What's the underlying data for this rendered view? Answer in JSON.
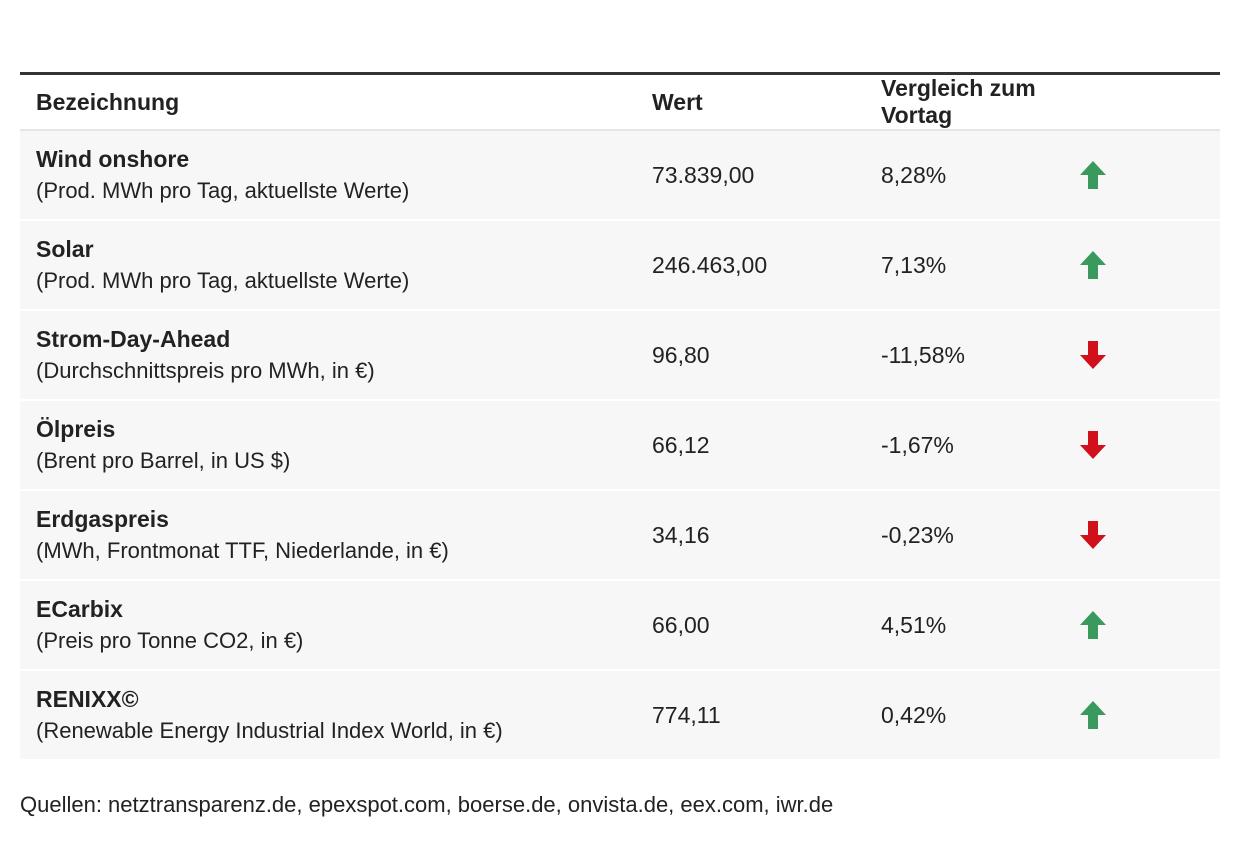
{
  "table": {
    "headers": {
      "name": "Bezeichnung",
      "value": "Wert",
      "change": "Vergleich zum Vortag"
    },
    "rows": [
      {
        "title": "Wind onshore",
        "subtitle": "(Prod. MWh pro Tag, aktuellste Werte)",
        "value": "73.839,00",
        "change": "8,28%",
        "trend": "up"
      },
      {
        "title": "Solar",
        "subtitle": "(Prod. MWh pro Tag, aktuellste Werte)",
        "value": "246.463,00",
        "change": "7,13%",
        "trend": "up"
      },
      {
        "title": "Strom-Day-Ahead",
        "subtitle": "(Durchschnittspreis pro MWh, in €)",
        "value": "96,80",
        "change": "-11,58%",
        "trend": "down"
      },
      {
        "title": "Ölpreis",
        "subtitle": "(Brent pro Barrel, in US $)",
        "value": "66,12",
        "change": "-1,67%",
        "trend": "down"
      },
      {
        "title": "Erdgaspreis",
        "subtitle": "(MWh, Frontmonat TTF, Niederlande, in €)",
        "value": "34,16",
        "change": "-0,23%",
        "trend": "down"
      },
      {
        "title": "ECarbix",
        "subtitle": "(Preis pro Tonne CO2, in €)",
        "value": "66,00",
        "change": "4,51%",
        "trend": "up"
      },
      {
        "title": "RENIXX©",
        "subtitle": "(Renewable Energy Industrial Index World, in €)",
        "value": "774,11",
        "change": "0,42%",
        "trend": "up"
      }
    ]
  },
  "colors": {
    "up": "#3a9a5e",
    "down": "#d0101a"
  },
  "icons": {
    "up": "arrow-up-icon",
    "down": "arrow-down-icon"
  },
  "source": "Quellen: netztransparenz.de, epexspot.com, boerse.de, onvista.de, eex.com, iwr.de"
}
